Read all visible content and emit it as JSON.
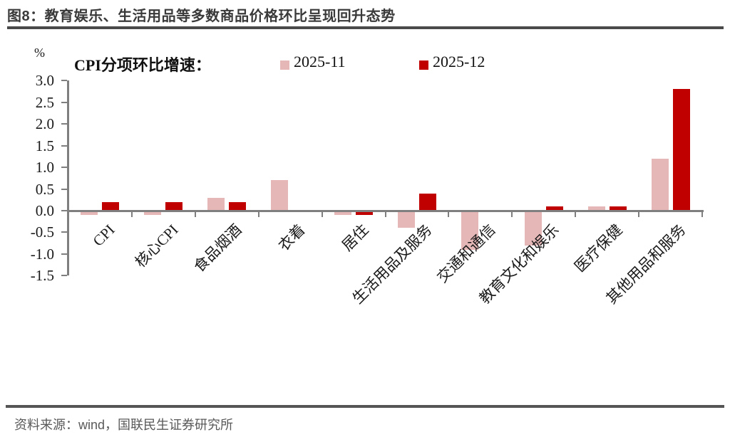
{
  "header": {
    "figure_title": "图8：教育娱乐、生活用品等多数商品价格环比呈现回升态势"
  },
  "legend": {
    "title": "CPI分项环比增速："
  },
  "axis": {
    "unit_label": "%"
  },
  "footer": {
    "source": "资料来源：wind，国联民生证券研究所"
  },
  "colors": {
    "series_2025_11": "#E5B8B7",
    "series_2025_12": "#C00000",
    "axis": "#7F7F7F",
    "title_text": "#3A3A3A",
    "divider": "#4A4A4A",
    "source_text": "#595959"
  },
  "chart_data": {
    "type": "bar",
    "title": "CPI分项环比增速",
    "unit": "%",
    "categories": [
      "CPI",
      "核心CPI",
      "食品烟酒",
      "衣着",
      "居住",
      "生活用品及服务",
      "交通和通信",
      "教育文化和娱乐",
      "医疗保健",
      "其他用品和服务"
    ],
    "series": [
      {
        "name": "2025-11",
        "color": "#E5B8B7",
        "values": [
          -0.1,
          -0.1,
          0.3,
          0.7,
          -0.1,
          -0.4,
          -0.9,
          -0.8,
          0.1,
          1.2
        ]
      },
      {
        "name": "2025-12",
        "color": "#C00000",
        "values": [
          0.2,
          0.2,
          0.2,
          0.0,
          -0.1,
          0.4,
          0.0,
          0.1,
          0.1,
          2.8
        ]
      }
    ],
    "ylim": [
      -1.5,
      3.0
    ],
    "yticks": [
      3.0,
      2.5,
      2.0,
      1.5,
      1.0,
      0.5,
      0.0,
      -0.5,
      -1.0,
      -1.5
    ],
    "grid": false,
    "legend_position": "top"
  }
}
